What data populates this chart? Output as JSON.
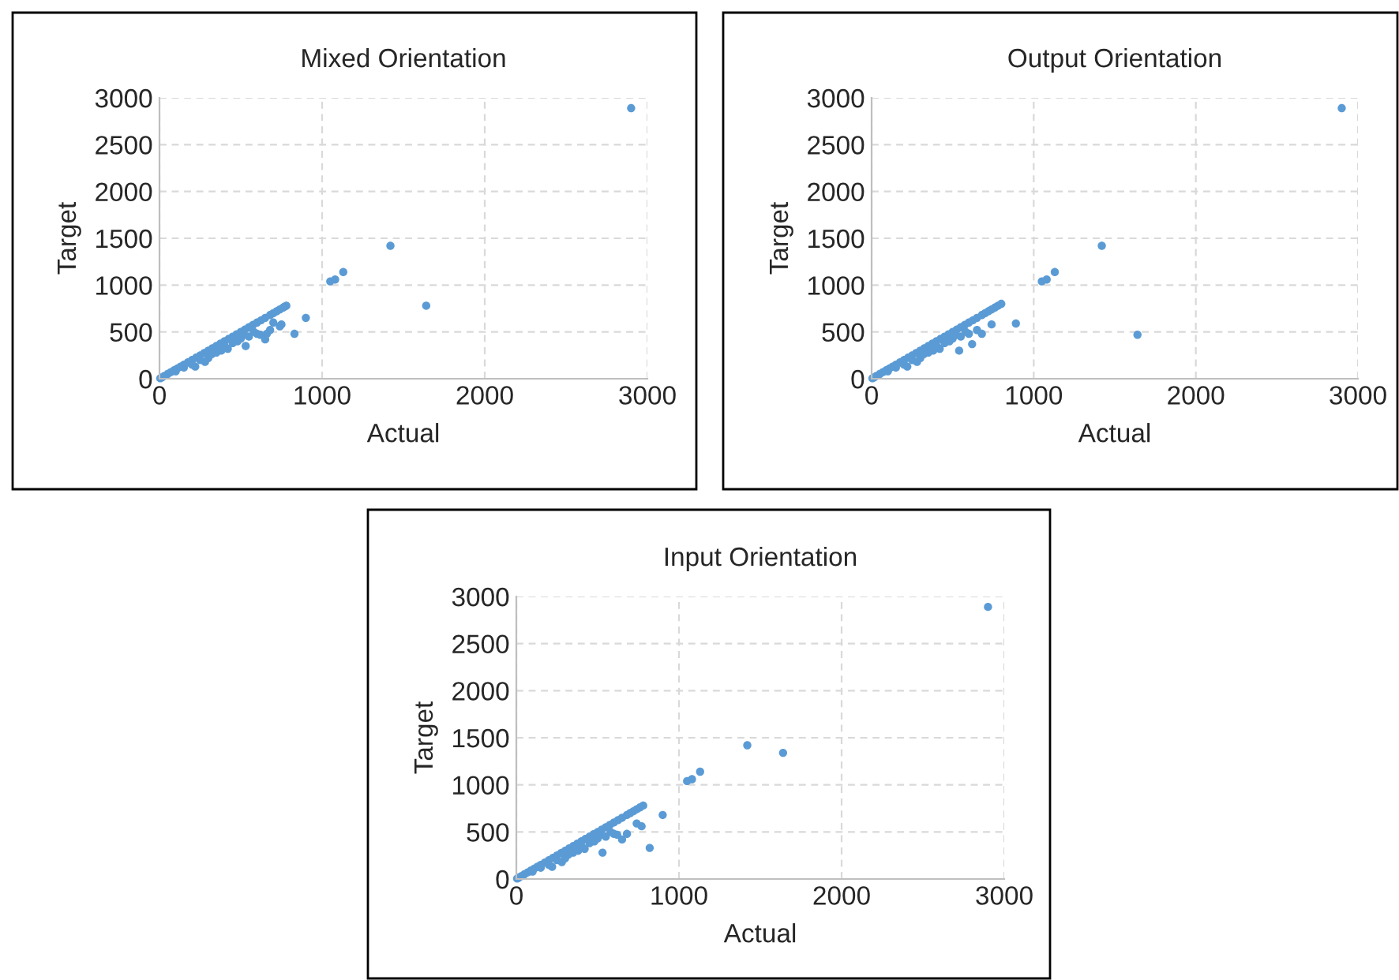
{
  "chart_data": [
    {
      "type": "scatter",
      "title": "Mixed Orientation",
      "xlabel": "Actual",
      "ylabel": "Target",
      "xlim": [
        0,
        3000
      ],
      "ylim": [
        0,
        3000
      ],
      "xticks": [
        0,
        1000,
        2000,
        3000
      ],
      "yticks": [
        0,
        500,
        1000,
        1500,
        2000,
        2500,
        3000
      ],
      "grid": true,
      "marker": "circle",
      "series": [
        {
          "color": "#5b9bd5",
          "x": [
            5,
            15,
            30,
            50,
            70,
            90,
            110,
            130,
            150,
            175,
            200,
            225,
            250,
            275,
            300,
            325,
            350,
            375,
            400,
            425,
            450,
            475,
            500,
            525,
            550,
            575,
            600,
            625,
            650,
            680,
            700,
            720,
            740,
            760,
            770,
            780,
            100,
            150,
            200,
            220,
            250,
            280,
            300,
            320,
            350,
            380,
            400,
            420,
            450,
            480,
            500,
            520,
            530,
            550,
            580,
            600,
            620,
            650,
            660,
            680,
            700,
            740,
            900,
            830,
            750,
            1050,
            1080,
            1130,
            1420,
            1640,
            2900
          ],
          "values": [
            5,
            15,
            30,
            50,
            70,
            90,
            110,
            130,
            150,
            175,
            200,
            225,
            250,
            275,
            300,
            325,
            350,
            375,
            400,
            425,
            450,
            475,
            500,
            525,
            550,
            575,
            600,
            625,
            650,
            680,
            700,
            720,
            740,
            760,
            770,
            780,
            80,
            120,
            150,
            130,
            200,
            180,
            220,
            260,
            280,
            300,
            350,
            320,
            380,
            400,
            430,
            470,
            350,
            450,
            500,
            480,
            470,
            420,
            480,
            520,
            600,
            560,
            650,
            480,
            580,
            1040,
            1060,
            1140,
            1420,
            780,
            2890
          ]
        }
      ]
    },
    {
      "type": "scatter",
      "title": "Output Orientation",
      "xlabel": "Actual",
      "ylabel": "Target",
      "xlim": [
        0,
        3000
      ],
      "ylim": [
        0,
        3000
      ],
      "xticks": [
        0,
        1000,
        2000,
        3000
      ],
      "yticks": [
        0,
        500,
        1000,
        1500,
        2000,
        2500,
        3000
      ],
      "grid": true,
      "marker": "circle",
      "series": [
        {
          "color": "#5b9bd5",
          "x": [
            5,
            15,
            30,
            50,
            70,
            90,
            110,
            130,
            150,
            175,
            200,
            225,
            250,
            275,
            300,
            325,
            350,
            375,
            400,
            425,
            450,
            475,
            500,
            525,
            550,
            575,
            600,
            625,
            650,
            680,
            700,
            720,
            740,
            760,
            780,
            800,
            100,
            150,
            200,
            220,
            250,
            280,
            300,
            320,
            350,
            380,
            400,
            420,
            450,
            480,
            500,
            520,
            540,
            550,
            580,
            600,
            620,
            650,
            680,
            740,
            890,
            1050,
            1080,
            1130,
            1420,
            1640,
            2900
          ],
          "values": [
            5,
            15,
            30,
            50,
            70,
            90,
            110,
            130,
            150,
            175,
            200,
            225,
            250,
            275,
            300,
            325,
            350,
            375,
            400,
            425,
            450,
            475,
            500,
            525,
            550,
            575,
            600,
            625,
            650,
            680,
            700,
            720,
            740,
            760,
            780,
            800,
            80,
            120,
            150,
            130,
            200,
            180,
            220,
            260,
            280,
            300,
            350,
            320,
            380,
            400,
            430,
            470,
            300,
            450,
            500,
            480,
            370,
            520,
            480,
            580,
            590,
            1040,
            1060,
            1140,
            1420,
            470,
            2890
          ]
        }
      ]
    },
    {
      "type": "scatter",
      "title": "Input Orientation",
      "xlabel": "Actual",
      "ylabel": "Target",
      "xlim": [
        0,
        3000
      ],
      "ylim": [
        0,
        3000
      ],
      "xticks": [
        0,
        1000,
        2000,
        3000
      ],
      "yticks": [
        0,
        500,
        1000,
        1500,
        2000,
        2500,
        3000
      ],
      "grid": true,
      "marker": "circle",
      "series": [
        {
          "color": "#5b9bd5",
          "x": [
            5,
            15,
            30,
            50,
            70,
            90,
            110,
            130,
            150,
            175,
            200,
            225,
            250,
            275,
            300,
            325,
            350,
            375,
            400,
            425,
            450,
            475,
            500,
            525,
            550,
            575,
            600,
            625,
            650,
            680,
            700,
            720,
            740,
            760,
            780,
            100,
            150,
            200,
            220,
            250,
            280,
            300,
            320,
            350,
            380,
            400,
            420,
            450,
            480,
            500,
            520,
            530,
            550,
            580,
            600,
            620,
            650,
            680,
            740,
            770,
            820,
            900,
            1050,
            1080,
            1130,
            1420,
            1640,
            2900
          ],
          "values": [
            5,
            15,
            30,
            50,
            70,
            90,
            110,
            130,
            150,
            175,
            200,
            225,
            250,
            275,
            300,
            325,
            350,
            375,
            400,
            425,
            450,
            475,
            500,
            525,
            550,
            575,
            600,
            625,
            650,
            680,
            700,
            720,
            740,
            760,
            780,
            80,
            120,
            150,
            130,
            200,
            180,
            220,
            260,
            280,
            300,
            350,
            320,
            380,
            400,
            430,
            470,
            280,
            450,
            500,
            480,
            470,
            420,
            480,
            590,
            560,
            330,
            680,
            1040,
            1060,
            1140,
            1420,
            1340,
            2890
          ]
        }
      ]
    }
  ]
}
